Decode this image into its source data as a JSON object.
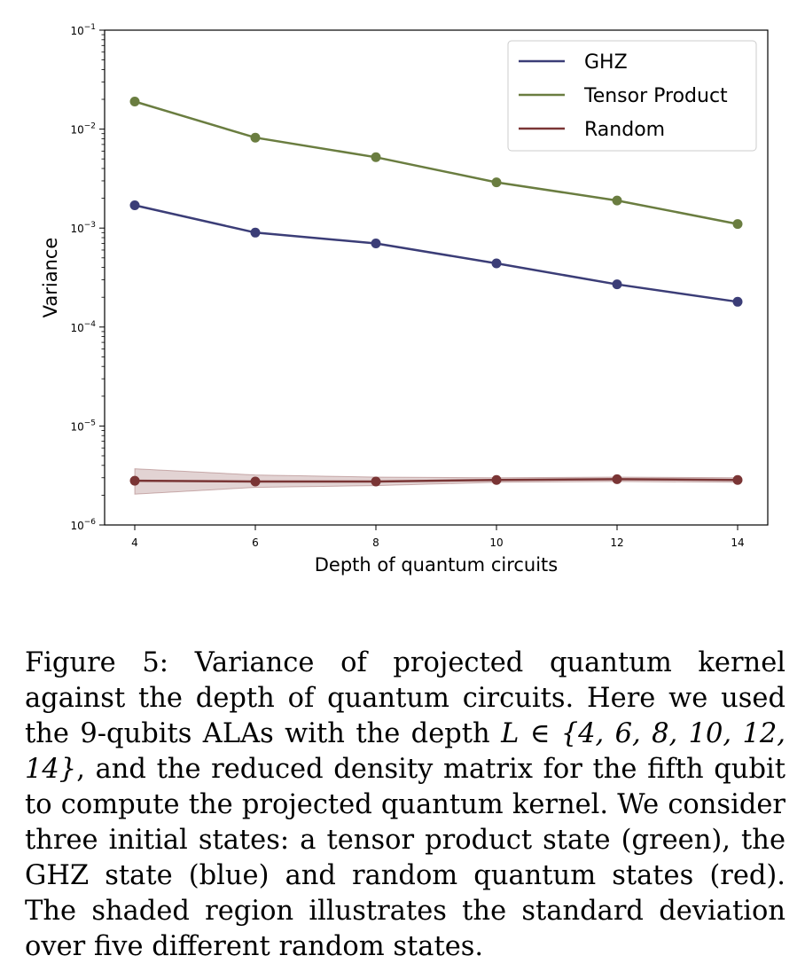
{
  "chart_data": {
    "type": "line",
    "xlabel": "Depth of quantum circuits",
    "ylabel": "Variance",
    "yscale": "log",
    "xlim": [
      3.5,
      14.5
    ],
    "ylim": [
      1e-06,
      0.1
    ],
    "x": [
      4,
      6,
      8,
      10,
      12,
      14
    ],
    "x_ticks": [
      "4",
      "6",
      "8",
      "10",
      "12",
      "14"
    ],
    "y_ticks": [
      {
        "base": "10",
        "exp": "−6",
        "value": 1e-06
      },
      {
        "base": "10",
        "exp": "−5",
        "value": 1e-05
      },
      {
        "base": "10",
        "exp": "−4",
        "value": 0.0001
      },
      {
        "base": "10",
        "exp": "−3",
        "value": 0.001
      },
      {
        "base": "10",
        "exp": "−2",
        "value": 0.01
      },
      {
        "base": "10",
        "exp": "−1",
        "value": 0.1
      }
    ],
    "legend_position": "top-right",
    "grid": false,
    "series": [
      {
        "name": "GHZ",
        "color": "#3b3d77",
        "values": [
          0.0017,
          0.0009,
          0.0007,
          0.00044,
          0.00027,
          0.00018
        ]
      },
      {
        "name": "Tensor Product",
        "color": "#6a7d40",
        "values": [
          0.019,
          0.0082,
          0.0052,
          0.0029,
          0.0019,
          0.0011
        ]
      },
      {
        "name": "Random",
        "color": "#7a3535",
        "values": [
          2.8e-06,
          2.75e-06,
          2.75e-06,
          2.85e-06,
          2.9e-06,
          2.85e-06
        ],
        "band_upper": [
          3.7e-06,
          3.2e-06,
          3.05e-06,
          3e-06,
          3.05e-06,
          3e-06
        ],
        "band_lower": [
          2.05e-06,
          2.4e-06,
          2.5e-06,
          2.7e-06,
          2.75e-06,
          2.7e-06
        ]
      }
    ]
  },
  "caption": {
    "prefix": "Figure 5: Variance of projected quantum kernel against the depth of quantum circuits. Here we used the 9-qubits ALAs with the depth ",
    "math": "L ∈ {4, 6, 8, 10, 12, 14}",
    "suffix": ", and the reduced density matrix for the fifth qubit to compute the projected quantum kernel. We consider three initial states: a tensor product state (green), the GHZ state (blue) and random quantum states (red). The shaded region illustrates the standard deviation over five different random states."
  }
}
